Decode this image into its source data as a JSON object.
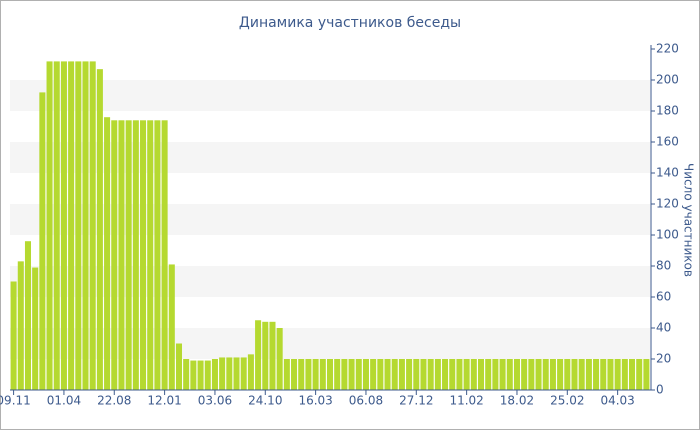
{
  "chart_data": {
    "type": "bar",
    "title": "Динамика участников беседы",
    "y_label": "Число участников",
    "categories": [
      "09.11",
      null,
      null,
      null,
      null,
      null,
      null,
      "01.04",
      null,
      null,
      null,
      null,
      null,
      null,
      "22.08",
      null,
      null,
      null,
      null,
      null,
      null,
      "12.01",
      null,
      null,
      null,
      null,
      null,
      null,
      "03.06",
      null,
      null,
      null,
      null,
      null,
      null,
      "24.10",
      null,
      null,
      null,
      null,
      null,
      null,
      "16.03",
      null,
      null,
      null,
      null,
      null,
      null,
      "06.08",
      null,
      null,
      null,
      null,
      null,
      null,
      "27.12",
      null,
      null,
      null,
      null,
      null,
      null,
      "11.02",
      null,
      null,
      null,
      null,
      null,
      null,
      "18.02",
      null,
      null,
      null,
      null,
      null,
      null,
      "25.02",
      null,
      null,
      null,
      null,
      null,
      null,
      "04.03",
      null,
      null,
      null,
      null
    ],
    "values": [
      70,
      83,
      96,
      79,
      192,
      212,
      212,
      212,
      212,
      212,
      212,
      212,
      207,
      176,
      174,
      174,
      174,
      174,
      174,
      174,
      174,
      174,
      81,
      30,
      20,
      19,
      19,
      19,
      20,
      21,
      21,
      21,
      21,
      23,
      45,
      44,
      44,
      40,
      20,
      20,
      20,
      20,
      20,
      20,
      20,
      20,
      20,
      20,
      20,
      20,
      20,
      20,
      20,
      20,
      20,
      20,
      20,
      20,
      20,
      20,
      20,
      20,
      20,
      20,
      20,
      20,
      20,
      20,
      20,
      20,
      20,
      20,
      20,
      20,
      20,
      20,
      20,
      20,
      20,
      20,
      20,
      20,
      20,
      20,
      20,
      20,
      20,
      20,
      20
    ],
    "color": "#b5d930",
    "ylim": [
      0,
      220
    ],
    "yticks": [
      0,
      20,
      40,
      60,
      80,
      100,
      120,
      140,
      160,
      180,
      200,
      220
    ],
    "grid": true,
    "y_axis_side": "right"
  }
}
